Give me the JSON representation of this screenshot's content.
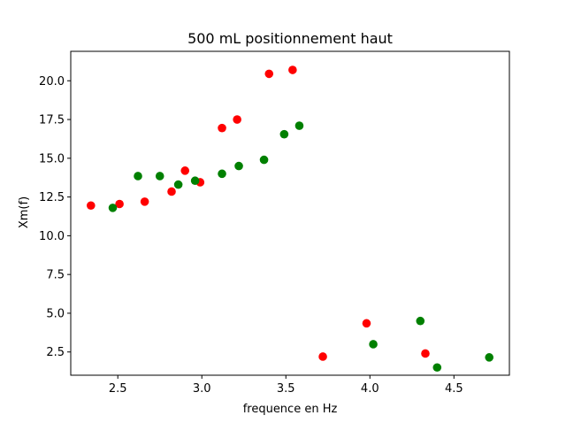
{
  "chart_data": {
    "type": "scatter",
    "title": "500 mL positionnement haut",
    "xlabel": "frequence en Hz",
    "ylabel": "Xm(f)",
    "xlim": [
      2.22,
      4.83
    ],
    "ylim": [
      1.0,
      21.9
    ],
    "xticks": [
      2.5,
      3.0,
      3.5,
      4.0,
      4.5
    ],
    "xtick_labels": [
      "2.5",
      "3.0",
      "3.5",
      "4.0",
      "4.5"
    ],
    "yticks": [
      2.5,
      5.0,
      7.5,
      10.0,
      12.5,
      15.0,
      17.5,
      20.0
    ],
    "ytick_labels": [
      "2.5",
      "5.0",
      "7.5",
      "10.0",
      "12.5",
      "15.0",
      "17.5",
      "20.0"
    ],
    "grid": false,
    "series": [
      {
        "color": "#ff0000",
        "points": [
          {
            "x": 2.34,
            "y": 11.95
          },
          {
            "x": 2.51,
            "y": 12.05
          },
          {
            "x": 2.66,
            "y": 12.2
          },
          {
            "x": 2.82,
            "y": 12.85
          },
          {
            "x": 2.9,
            "y": 14.2
          },
          {
            "x": 2.99,
            "y": 13.45
          },
          {
            "x": 3.12,
            "y": 16.95
          },
          {
            "x": 3.21,
            "y": 17.5
          },
          {
            "x": 3.4,
            "y": 20.45
          },
          {
            "x": 3.54,
            "y": 20.7
          },
          {
            "x": 3.72,
            "y": 2.2
          },
          {
            "x": 3.98,
            "y": 4.35
          },
          {
            "x": 4.33,
            "y": 2.4
          }
        ]
      },
      {
        "color": "#008000",
        "points": [
          {
            "x": 2.47,
            "y": 11.8
          },
          {
            "x": 2.62,
            "y": 13.85
          },
          {
            "x": 2.75,
            "y": 13.85
          },
          {
            "x": 2.86,
            "y": 13.3
          },
          {
            "x": 2.96,
            "y": 13.55
          },
          {
            "x": 3.12,
            "y": 14.0
          },
          {
            "x": 3.22,
            "y": 14.5
          },
          {
            "x": 3.37,
            "y": 14.9
          },
          {
            "x": 3.49,
            "y": 16.55
          },
          {
            "x": 3.58,
            "y": 17.1
          },
          {
            "x": 4.02,
            "y": 3.0
          },
          {
            "x": 4.3,
            "y": 4.5
          },
          {
            "x": 4.4,
            "y": 1.5
          },
          {
            "x": 4.71,
            "y": 2.15
          }
        ]
      }
    ]
  }
}
